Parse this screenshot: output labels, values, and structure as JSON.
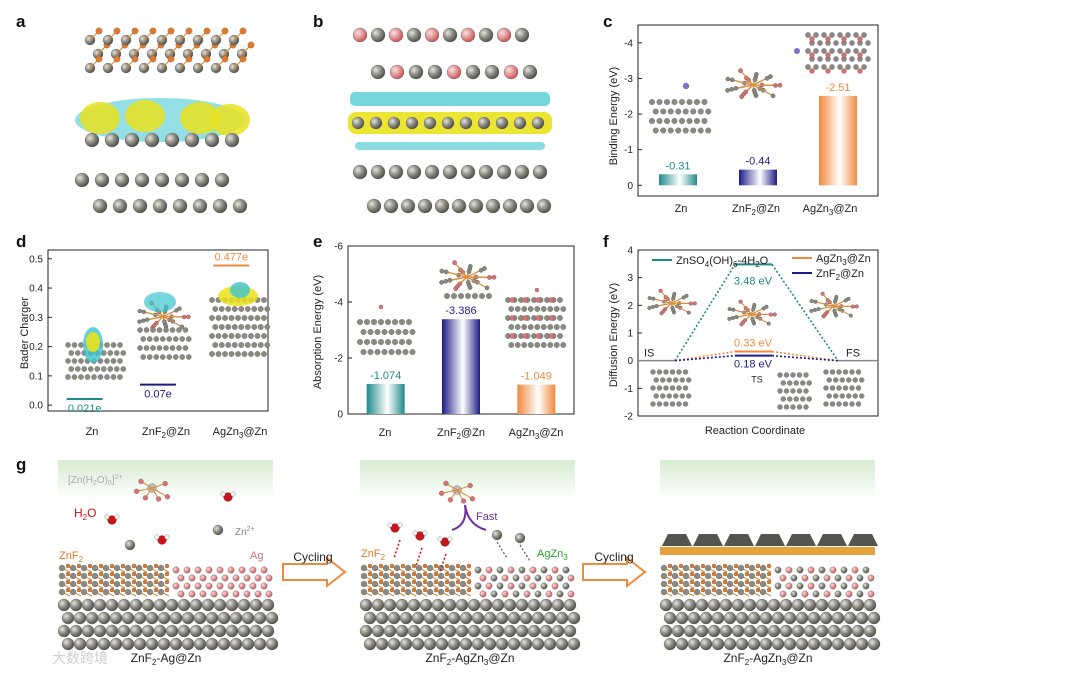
{
  "panel_labels": [
    "a",
    "b",
    "c",
    "d",
    "e",
    "f",
    "g"
  ],
  "colors": {
    "teal": "#1f8a8a",
    "navy": "#1c1c86",
    "orange": "#f08a3c",
    "gray": "#8a8a80",
    "pink": "#e07a7a",
    "gold": "#e6a33c",
    "cyan": "#3cc4cf",
    "yellow": "#e9e21d"
  },
  "chart_data": [
    {
      "id": "c",
      "type": "bar",
      "categories": [
        "Zn",
        "ZnF2@Zn",
        "AgZn3@Zn"
      ],
      "values": [
        -0.31,
        -0.44,
        -2.51
      ],
      "value_labels": [
        "-0.31",
        "-0.44",
        "-2.51"
      ],
      "ylabel": "Binding Energy (eV)",
      "ylim": [
        0.3,
        -4.5
      ],
      "yticks": [
        0,
        -1,
        -2,
        -3,
        -4
      ],
      "ytick_labels": [
        "0",
        "-1",
        "-2",
        "-3",
        "-4"
      ],
      "colors": [
        "#1f8a8a",
        "#1c1c86",
        "#f08a3c"
      ]
    },
    {
      "id": "d",
      "type": "bar",
      "categories": [
        "Zn",
        "ZnF2@Zn",
        "AgZn3@Zn"
      ],
      "values": [
        0.021,
        0.07,
        0.477
      ],
      "value_labels": [
        "0.021e",
        "0.07e",
        "0.477e"
      ],
      "ylabel": "Bader Charger",
      "ylim": [
        -0.02,
        0.53
      ],
      "yticks": [
        0.0,
        0.1,
        0.2,
        0.3,
        0.4,
        0.5
      ],
      "ytick_labels": [
        "0.0",
        "0.1",
        "0.2",
        "0.3",
        "0.4",
        "0.5"
      ],
      "colors": [
        "#1f8a8a",
        "#1c1c86",
        "#f08a3c"
      ]
    },
    {
      "id": "e",
      "type": "bar",
      "categories": [
        "Zn",
        "ZnF2@Zn",
        "AgZn3@Zn"
      ],
      "values": [
        -1.074,
        -3.386,
        -1.049
      ],
      "value_labels": [
        "-1.074",
        "-3.386",
        "-1.049"
      ],
      "ylabel": "Absorption Energy (eV)",
      "ylim": [
        0,
        -6
      ],
      "yticks": [
        0,
        -2,
        -4,
        -6
      ],
      "ytick_labels": [
        "0",
        "-2",
        "-4",
        "-6"
      ],
      "colors": [
        "#1f8a8a",
        "#1c1c86",
        "#f08a3c"
      ]
    },
    {
      "id": "f",
      "type": "line",
      "xlabel": "Reaction Coordinate",
      "ylabel": "Diffusion Energy (eV)",
      "ylim": [
        -2,
        4
      ],
      "yticks": [
        -2,
        -1,
        0,
        1,
        2,
        3,
        4
      ],
      "ytick_labels": [
        "-2",
        "-1",
        "0",
        "1",
        "2",
        "3",
        "4"
      ],
      "states": [
        "IS",
        "TS",
        "FS"
      ],
      "series": [
        {
          "name": "ZnSO4(OH)6-4H2O",
          "barrier": 3.48,
          "label": "3.48 eV",
          "color": "#1f8a8a"
        },
        {
          "name": "AgZn3@Zn",
          "barrier": 0.33,
          "label": "0.33 eV",
          "color": "#f08a3c"
        },
        {
          "name": "ZnF2@Zn",
          "barrier": 0.18,
          "label": "0.18 eV",
          "color": "#1c1c86"
        }
      ]
    }
  ],
  "panel_g": {
    "complex_label": "[Zn(H2O)6]2+",
    "water_label": "H2O",
    "zn_ion_label": "Zn2+",
    "znf2_label": "ZnF2",
    "ag_label": "Ag",
    "agzn3_label": "AgZn3",
    "fast_label": "Fast",
    "cycling_label": "Cycling",
    "captions": [
      "ZnF2-Ag@Zn",
      "ZnF2-AgZn3@Zn",
      "ZnF2-AgZn3@Zn"
    ]
  },
  "watermark": "大数跨境"
}
